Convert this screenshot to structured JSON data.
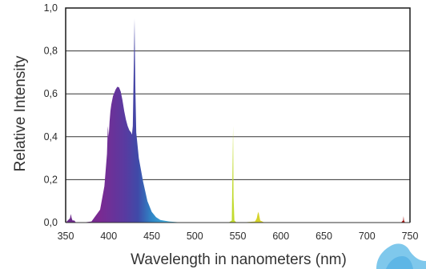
{
  "chart_data": {
    "type": "area",
    "title": "",
    "xlabel": "Wavelength in nanometers (nm)",
    "ylabel": "Relative Intensity",
    "xlim": [
      350,
      750
    ],
    "ylim": [
      0,
      1.0
    ],
    "x_ticks": [
      "350",
      "400",
      "450",
      "500",
      "550",
      "600",
      "650",
      "700",
      "750"
    ],
    "y_ticks": [
      "0,0",
      "0,2",
      "0,4",
      "0,6",
      "0,8",
      "1,0"
    ],
    "grid": true,
    "legend": "none",
    "colors": {
      "violet": "#7a2a92",
      "indigo": "#4a3b9e",
      "blue": "#2f86c6",
      "cyan": "#3fa8d8",
      "green_yellow": "#c8dc2a",
      "yellow": "#d8d22a",
      "red": "#b01414"
    },
    "series": [
      {
        "name": "",
        "x": [
          350,
          355,
          356,
          357,
          358,
          360,
          362,
          370,
          380,
          390,
          395,
          398,
          399,
          400,
          401,
          402,
          403,
          405,
          408,
          410,
          412,
          414,
          416,
          418,
          420,
          422,
          424,
          426,
          427,
          428,
          429,
          430,
          431,
          432,
          435,
          440,
          445,
          450,
          455,
          460,
          470,
          480,
          500,
          520,
          540,
          543,
          544,
          544.5,
          545,
          546,
          548,
          560,
          570,
          572,
          573,
          574,
          575,
          576,
          580,
          600,
          620,
          650,
          680,
          700,
          740,
          742,
          742.5,
          743,
          744,
          750
        ],
        "y": [
          0,
          0.02,
          0.04,
          0.02,
          0.01,
          0.01,
          0,
          0,
          0.005,
          0.06,
          0.17,
          0.32,
          0.45,
          0.4,
          0.47,
          0.52,
          0.55,
          0.59,
          0.62,
          0.633,
          0.63,
          0.61,
          0.57,
          0.52,
          0.48,
          0.45,
          0.43,
          0.42,
          0.41,
          0.45,
          0.7,
          0.95,
          0.62,
          0.42,
          0.3,
          0.19,
          0.1,
          0.05,
          0.025,
          0.012,
          0.005,
          0.002,
          0.001,
          0.001,
          0.002,
          0.01,
          0.3,
          0.45,
          0.12,
          0.01,
          0.002,
          0.002,
          0.005,
          0.02,
          0.04,
          0.05,
          0.03,
          0.01,
          0.002,
          0.001,
          0.001,
          0.001,
          0.001,
          0.001,
          0.002,
          0.01,
          0.03,
          0.01,
          0.002,
          0
        ]
      }
    ]
  }
}
